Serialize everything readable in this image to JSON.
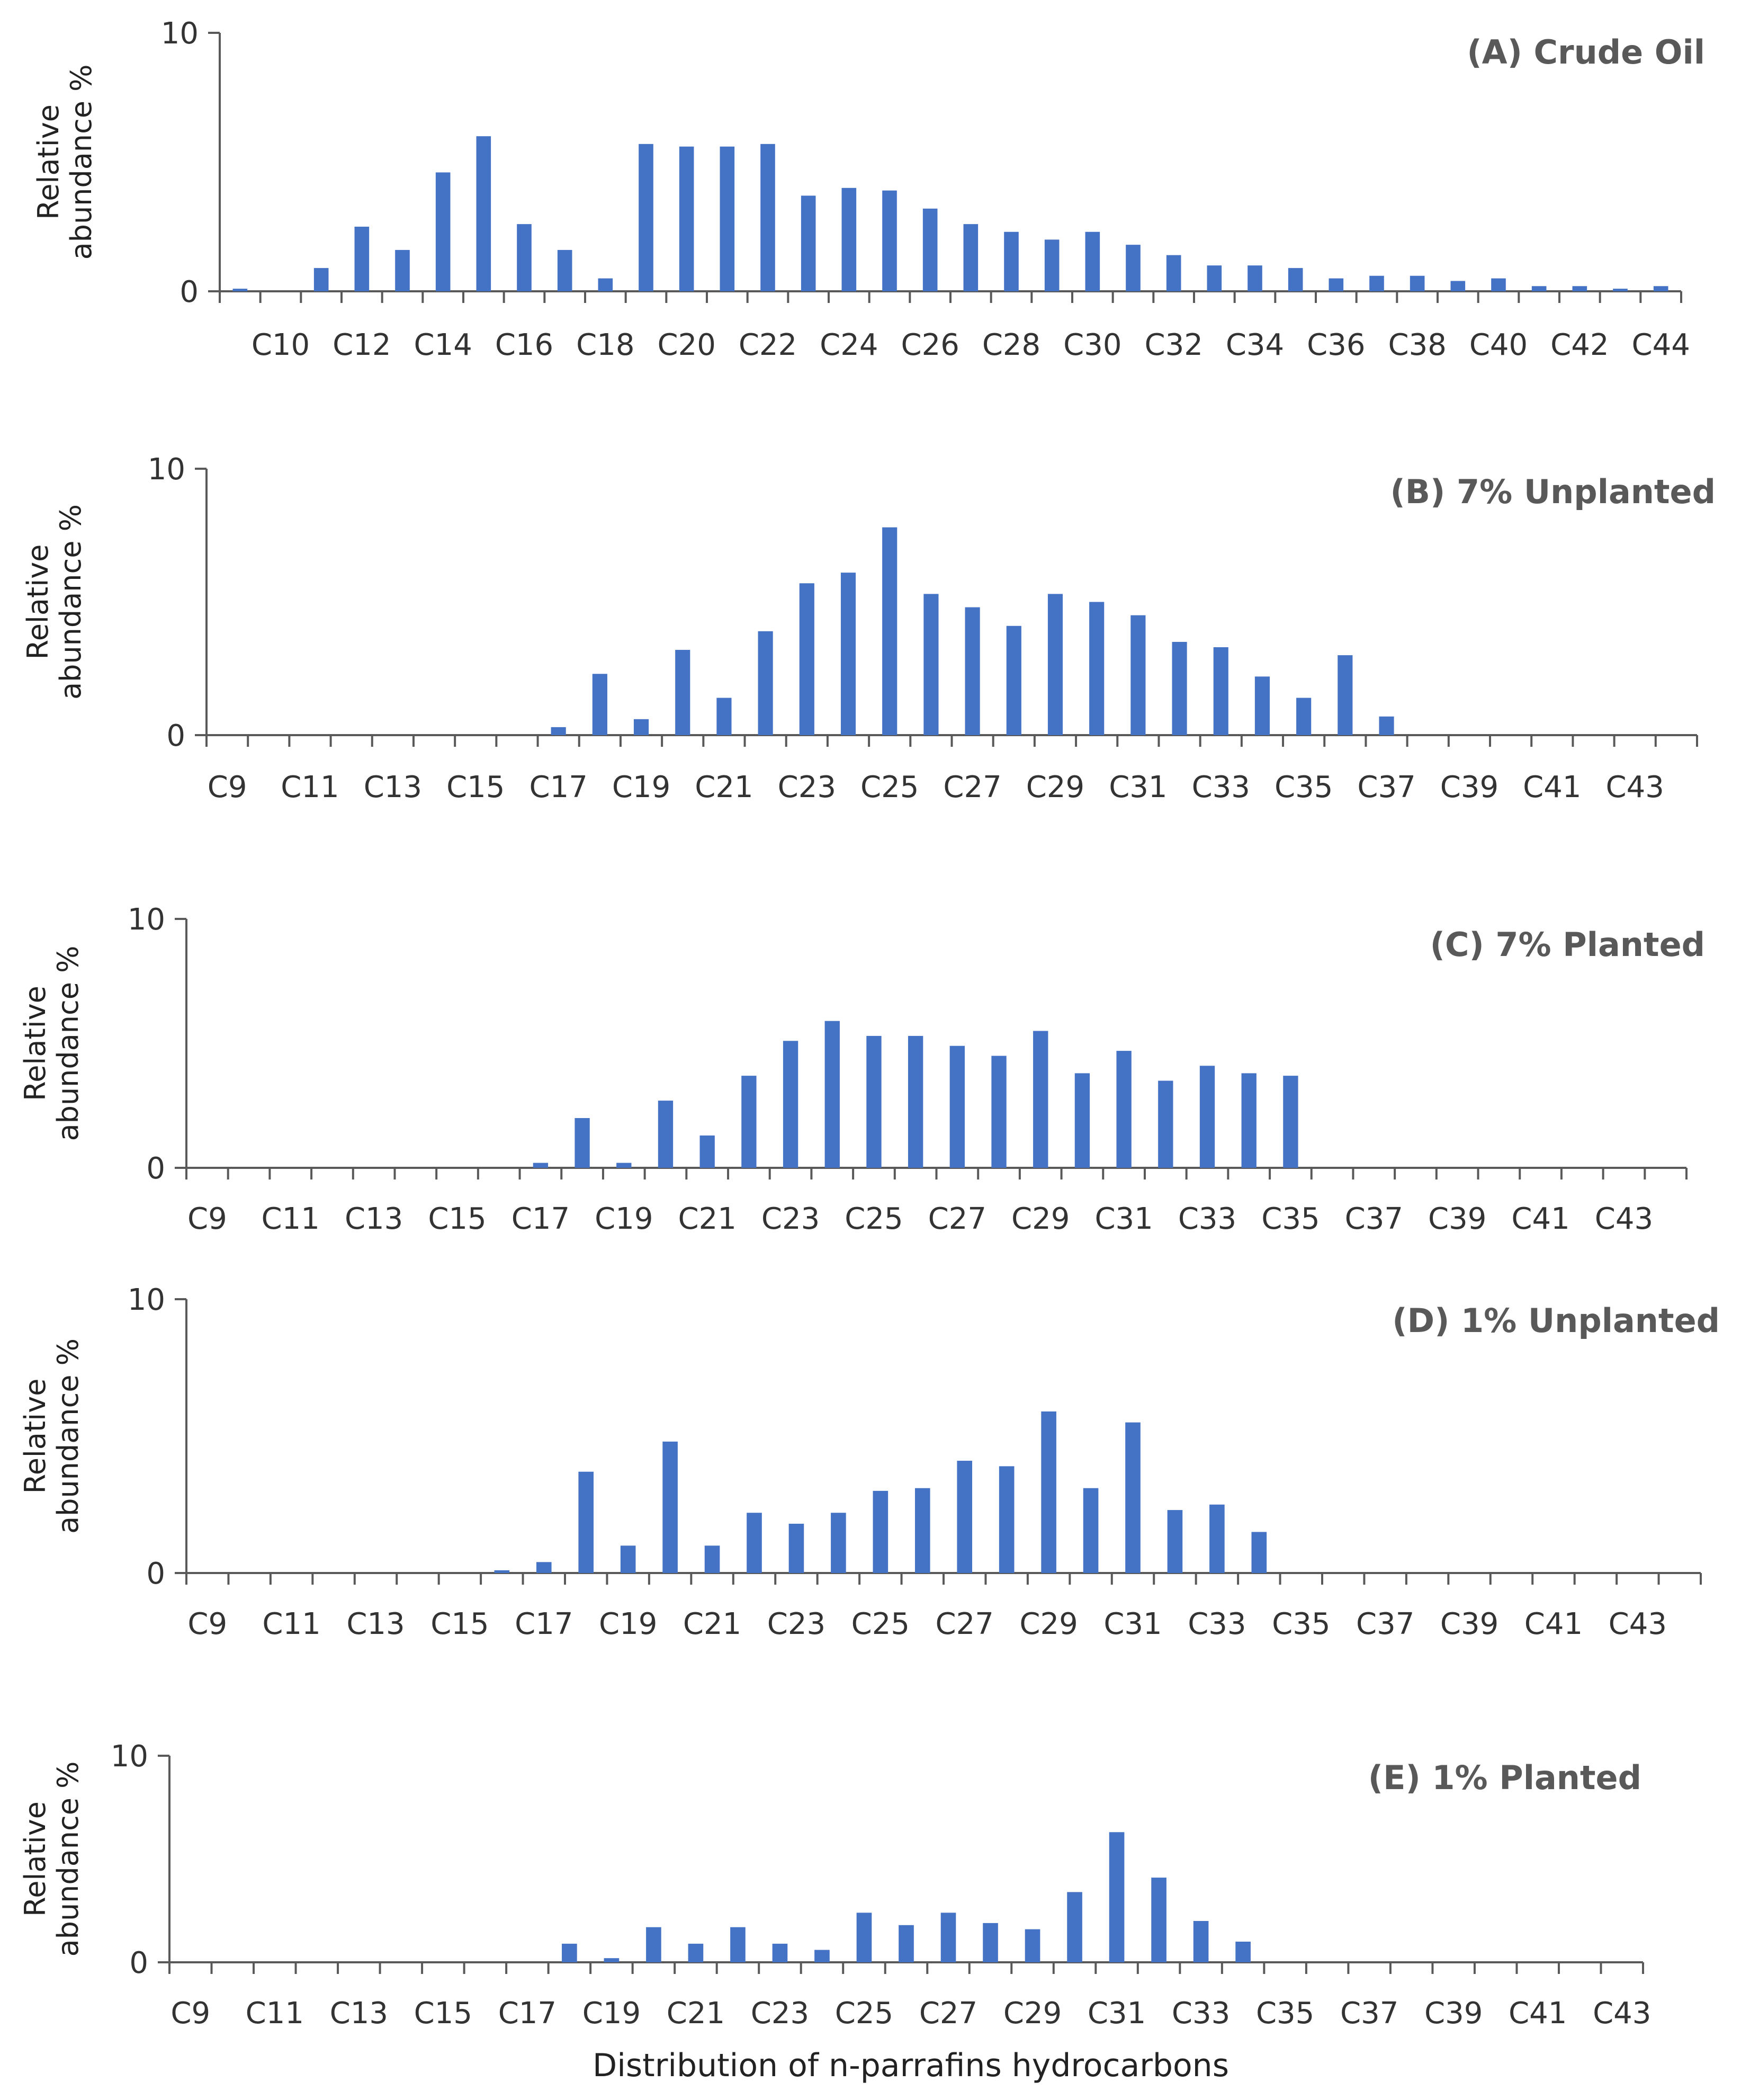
{
  "figure": {
    "xlabel": "Distribution of n-parrafins hydrocarbons",
    "bar_color": "#4472C4"
  },
  "chart_data": [
    {
      "type": "bar",
      "title": "(A) Crude Oil",
      "ylabel": "Relative abundance %",
      "ylim": [
        0,
        10
      ],
      "yticks": [
        "0",
        "10"
      ],
      "categories": [
        "C9",
        "C10",
        "C11",
        "C12",
        "C13",
        "C14",
        "C15",
        "C16",
        "C17",
        "C18",
        "C19",
        "C20",
        "C21",
        "C22",
        "C23",
        "C24",
        "C25",
        "C26",
        "C27",
        "C28",
        "C29",
        "C30",
        "C31",
        "C32",
        "C33",
        "C34",
        "C35",
        "C36",
        "C37",
        "C38",
        "C39",
        "C40",
        "C41",
        "C42",
        "C43",
        "C44"
      ],
      "tick_labels": [
        "C10",
        "C12",
        "C14",
        "C16",
        "C18",
        "C20",
        "C22",
        "C24",
        "C26",
        "C28",
        "C30",
        "C32",
        "C34",
        "C36",
        "C38",
        "C40",
        "C42",
        "C44"
      ],
      "values": [
        0.1,
        0,
        0.9,
        2.5,
        1.6,
        4.6,
        6.0,
        2.6,
        1.6,
        0.5,
        5.7,
        5.6,
        5.6,
        5.7,
        3.7,
        4.0,
        3.9,
        3.2,
        2.6,
        2.3,
        2.0,
        2.3,
        1.8,
        1.4,
        1.0,
        1.0,
        0.9,
        0.5,
        0.6,
        0.6,
        0.4,
        0.5,
        0.2,
        0.2,
        0.1,
        0.2
      ]
    },
    {
      "type": "bar",
      "title": "(B) 7% Unplanted",
      "ylabel": "Relative abundance %",
      "ylim": [
        0,
        10
      ],
      "yticks": [
        "0",
        "10"
      ],
      "categories": [
        "C9",
        "C10",
        "C11",
        "C12",
        "C13",
        "C14",
        "C15",
        "C16",
        "C17",
        "C18",
        "C19",
        "C20",
        "C21",
        "C22",
        "C23",
        "C24",
        "C25",
        "C26",
        "C27",
        "C28",
        "C29",
        "C30",
        "C31",
        "C32",
        "C33",
        "C34",
        "C35",
        "C36",
        "C37",
        "C38",
        "C39",
        "C40",
        "C41",
        "C42",
        "C43",
        "C44"
      ],
      "tick_labels": [
        "C9",
        "C11",
        "C13",
        "C15",
        "C17",
        "C19",
        "C21",
        "C23",
        "C25",
        "C27",
        "C29",
        "C31",
        "C33",
        "C35",
        "C37",
        "C39",
        "C41",
        "C43"
      ],
      "values": [
        0,
        0,
        0,
        0,
        0,
        0,
        0,
        0,
        0.3,
        2.3,
        0.6,
        3.2,
        1.4,
        3.9,
        5.7,
        6.1,
        7.8,
        5.3,
        4.8,
        4.1,
        5.3,
        5.0,
        4.5,
        3.5,
        3.3,
        2.2,
        1.4,
        3.0,
        0.7,
        0,
        0,
        0,
        0,
        0,
        0,
        0
      ]
    },
    {
      "type": "bar",
      "title": "(C) 7% Planted",
      "ylabel": "Relative abundance %",
      "ylim": [
        0,
        10
      ],
      "yticks": [
        "0",
        "10"
      ],
      "categories": [
        "C9",
        "C10",
        "C11",
        "C12",
        "C13",
        "C14",
        "C15",
        "C16",
        "C17",
        "C18",
        "C19",
        "C20",
        "C21",
        "C22",
        "C23",
        "C24",
        "C25",
        "C26",
        "C27",
        "C28",
        "C29",
        "C30",
        "C31",
        "C32",
        "C33",
        "C34",
        "C35",
        "C36",
        "C37",
        "C38",
        "C39",
        "C40",
        "C41",
        "C42",
        "C43",
        "C44"
      ],
      "tick_labels": [
        "C9",
        "C11",
        "C13",
        "C15",
        "C17",
        "C19",
        "C21",
        "C23",
        "C25",
        "C27",
        "C29",
        "C31",
        "C33",
        "C35",
        "C37",
        "C39",
        "C41",
        "C43"
      ],
      "values": [
        0,
        0,
        0,
        0,
        0,
        0,
        0,
        0,
        0.2,
        2.0,
        0.2,
        2.7,
        1.3,
        3.7,
        5.1,
        5.9,
        5.3,
        5.3,
        4.9,
        4.5,
        5.5,
        3.8,
        4.7,
        3.5,
        4.1,
        3.8,
        3.7,
        0,
        0,
        0,
        0,
        0,
        0,
        0,
        0,
        0
      ]
    },
    {
      "type": "bar",
      "title": "(D) 1% Unplanted",
      "ylabel": "Relative abundance %",
      "ylim": [
        0,
        10
      ],
      "yticks": [
        "0",
        "10"
      ],
      "categories": [
        "C9",
        "C10",
        "C11",
        "C12",
        "C13",
        "C14",
        "C15",
        "C16",
        "C17",
        "C18",
        "C19",
        "C20",
        "C21",
        "C22",
        "C23",
        "C24",
        "C25",
        "C26",
        "C27",
        "C28",
        "C29",
        "C30",
        "C31",
        "C32",
        "C33",
        "C34",
        "C35",
        "C36",
        "C37",
        "C38",
        "C39",
        "C40",
        "C41",
        "C42",
        "C43",
        "C44"
      ],
      "tick_labels": [
        "C9",
        "C11",
        "C13",
        "C15",
        "C17",
        "C19",
        "C21",
        "C23",
        "C25",
        "C27",
        "C29",
        "C31",
        "C33",
        "C35",
        "C37",
        "C39",
        "C41",
        "C43"
      ],
      "values": [
        0,
        0,
        0,
        0,
        0,
        0,
        0,
        0.1,
        0.4,
        3.7,
        1.0,
        4.8,
        1.0,
        2.2,
        1.8,
        2.2,
        3.0,
        3.1,
        4.1,
        3.9,
        5.9,
        3.1,
        5.5,
        2.3,
        2.5,
        1.5,
        0,
        0,
        0,
        0,
        0,
        0,
        0,
        0,
        0,
        0
      ]
    },
    {
      "type": "bar",
      "title": "(E) 1% Planted",
      "ylabel": "Relative abundance %",
      "ylim": [
        0,
        10
      ],
      "yticks": [
        "0",
        "10"
      ],
      "categories": [
        "C9",
        "C10",
        "C11",
        "C12",
        "C13",
        "C14",
        "C15",
        "C16",
        "C17",
        "C18",
        "C19",
        "C20",
        "C21",
        "C22",
        "C23",
        "C24",
        "C25",
        "C26",
        "C27",
        "C28",
        "C29",
        "C30",
        "C31",
        "C32",
        "C33",
        "C34",
        "C35",
        "C36",
        "C37",
        "C38",
        "C39",
        "C40",
        "C41",
        "C42",
        "C43"
      ],
      "tick_labels": [
        "C9",
        "C11",
        "C13",
        "C15",
        "C17",
        "C19",
        "C21",
        "C23",
        "C25",
        "C27",
        "C29",
        "C31",
        "C33",
        "C35",
        "C37",
        "C39",
        "C41",
        "C43"
      ],
      "values": [
        0,
        0,
        0,
        0,
        0,
        0,
        0,
        0,
        0,
        0.9,
        0.2,
        1.7,
        0.9,
        1.7,
        0.9,
        0.6,
        2.4,
        1.8,
        2.4,
        1.9,
        1.6,
        3.4,
        6.3,
        4.1,
        2.0,
        1.0,
        0,
        0,
        0,
        0,
        0,
        0,
        0,
        0,
        0
      ]
    }
  ]
}
